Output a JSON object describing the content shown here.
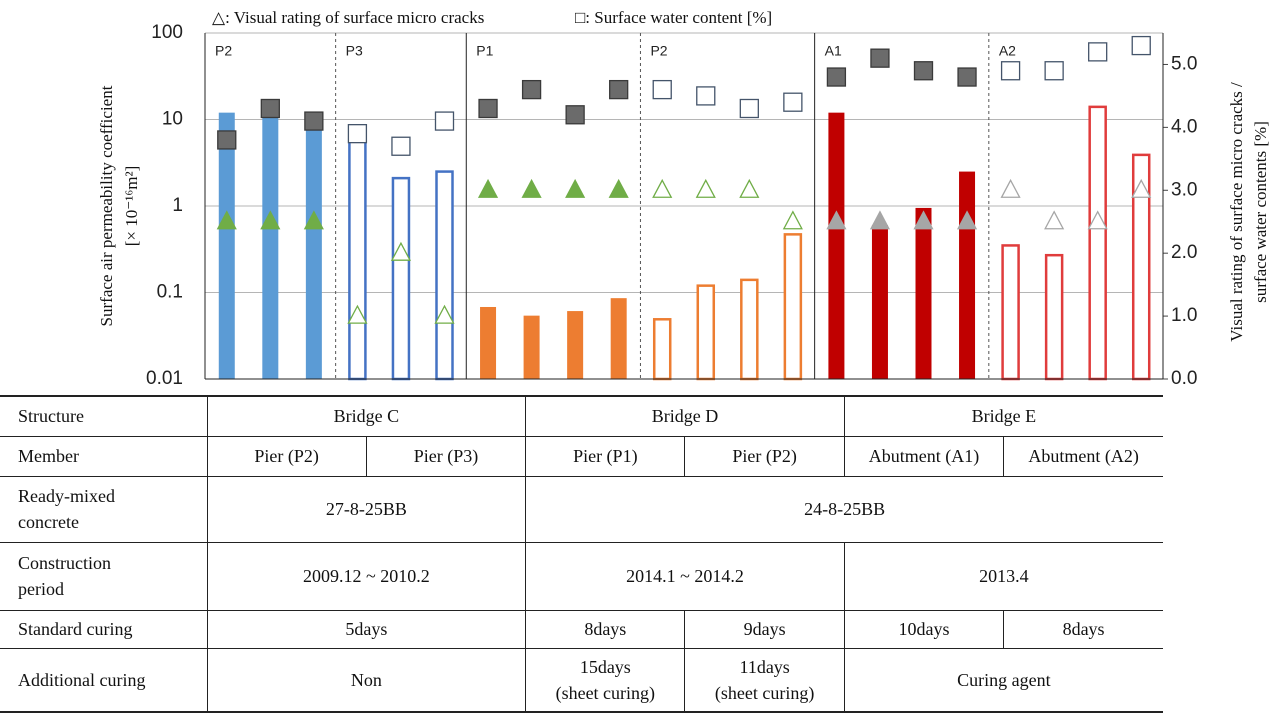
{
  "chart_data": {
    "type": "bar",
    "legend": [
      "△: Visual rating of surface micro cracks",
      "□: Surface water content [%]"
    ],
    "ylabel": [
      "Surface air permeability coefficient",
      "[× 10⁻¹⁶m²]"
    ],
    "y2label": [
      "Visual rating of surface micro cracks /",
      "surface water contents [%]"
    ],
    "log_y": true,
    "ylim": [
      0.01,
      100
    ],
    "yticks": [
      0.01,
      0.1,
      1,
      10,
      100
    ],
    "y2lim": [
      0,
      5.5
    ],
    "y2ticks": [
      {
        "value": 0,
        "label": "0.0"
      },
      {
        "value": 1,
        "label": "1.0"
      },
      {
        "value": 2,
        "label": "2.0"
      },
      {
        "value": 3,
        "label": "3.0"
      },
      {
        "value": 4,
        "label": "4.0"
      },
      {
        "value": 5,
        "label": "5.0"
      }
    ],
    "grid": true,
    "square_fill": "#6b6b6b",
    "square_stroke": "#44546a",
    "groups": [
      {
        "label": "P2",
        "filled": true,
        "color": "#5b9bd5",
        "triangle_color": "#70ad47",
        "permeability": [
          12,
          12,
          9
        ],
        "crack_rating": [
          2.5,
          2.5,
          2.5
        ],
        "water_content": [
          3.8,
          4.3,
          4.1
        ]
      },
      {
        "label": "P3",
        "filled": false,
        "color": "#4472c4",
        "triangle_color": "#70ad47",
        "permeability": [
          5.6,
          2.1,
          2.5
        ],
        "crack_rating": [
          1.0,
          2.0,
          1.0
        ],
        "water_content": [
          3.9,
          3.7,
          4.1
        ]
      },
      {
        "label": "P1",
        "filled": true,
        "color": "#ed7d31",
        "triangle_color": "#70ad47",
        "permeability": [
          0.068,
          0.054,
          0.061,
          0.086
        ],
        "crack_rating": [
          3.0,
          3.0,
          3.0,
          3.0
        ],
        "water_content": [
          4.3,
          4.6,
          4.2,
          4.6
        ]
      },
      {
        "label": "P2",
        "filled": false,
        "color": "#ed7d31",
        "triangle_color": "#70ad47",
        "permeability": [
          0.049,
          0.12,
          0.14,
          0.47
        ],
        "crack_rating": [
          3.0,
          3.0,
          3.0,
          2.5
        ],
        "water_content": [
          4.6,
          4.5,
          4.3,
          4.4
        ]
      },
      {
        "label": "A1",
        "filled": true,
        "color": "#c00000",
        "triangle_color": "#a6a6a6",
        "permeability": [
          12,
          0.6,
          0.95,
          2.5
        ],
        "crack_rating": [
          2.5,
          2.5,
          2.5,
          2.5
        ],
        "water_content": [
          4.8,
          5.1,
          4.9,
          4.8
        ]
      },
      {
        "label": "A2",
        "filled": false,
        "color": "#e03c3c",
        "triangle_color": "#a6a6a6",
        "permeability": [
          0.35,
          0.27,
          14,
          3.9
        ],
        "crack_rating": [
          3.0,
          2.5,
          2.5,
          3.0
        ],
        "water_content": [
          4.9,
          4.9,
          5.2,
          5.3
        ]
      }
    ]
  },
  "table": {
    "rows": [
      [
        "Structure",
        "Bridge C",
        "Bridge D",
        "Bridge E"
      ],
      [
        "Member",
        "Pier (P2)",
        "Pier (P3)",
        "Pier (P1)",
        "Pier (P2)",
        "Abutment (A1)",
        "Abutment (A2)"
      ],
      [
        "Ready-mixed\nconcrete",
        "27-8-25BB",
        "24-8-25BB"
      ],
      [
        "Construction\nperiod",
        "2009.12 ~ 2010.2",
        "2014.1 ~ 2014.2",
        "2013.4"
      ],
      [
        "Standard curing",
        "5days",
        "8days",
        "9days",
        "10days",
        "8days"
      ],
      [
        "Additional curing",
        "Non",
        "15days\n(sheet curing)",
        "11days\n(sheet curing)",
        "Curing agent"
      ]
    ]
  }
}
